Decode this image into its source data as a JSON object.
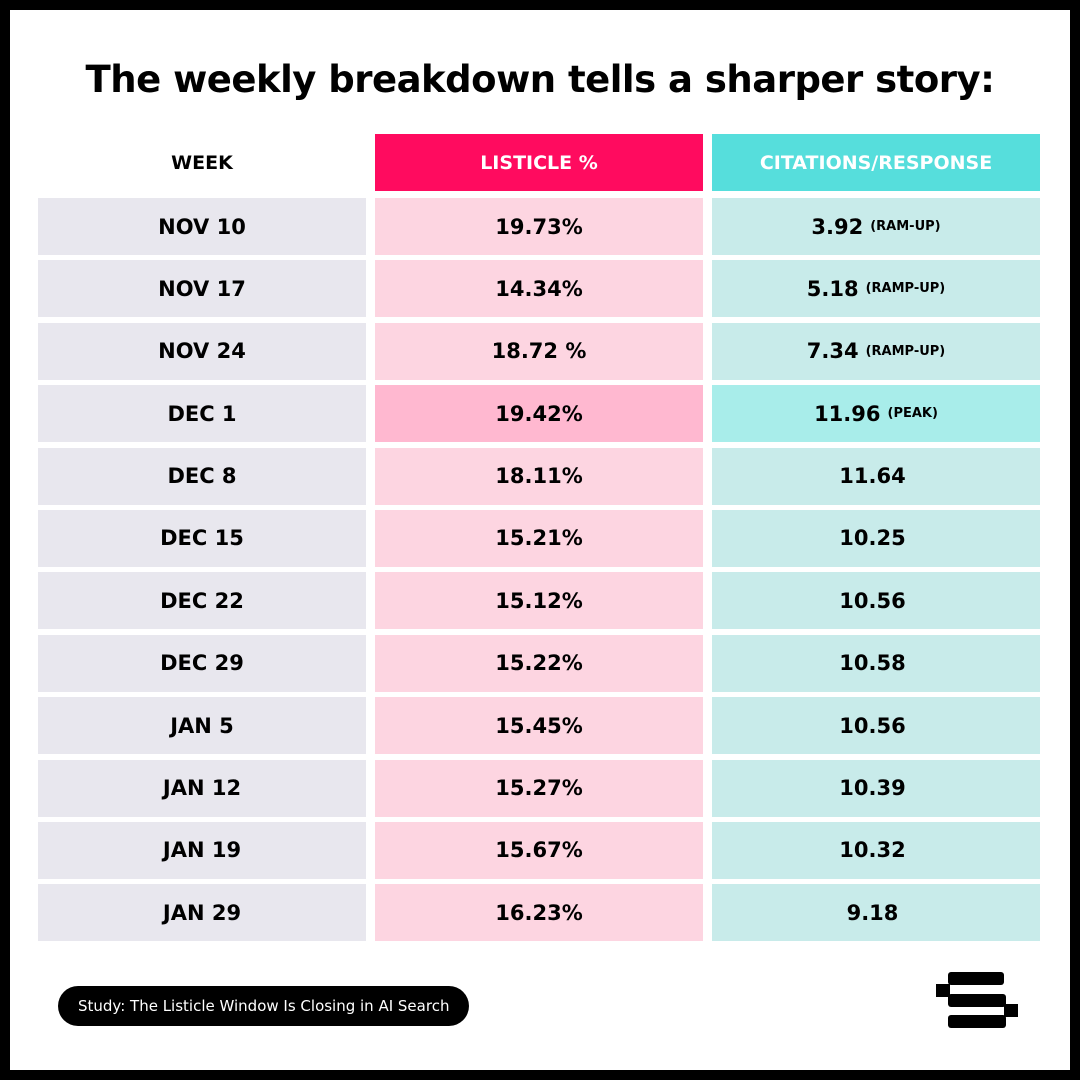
{
  "title": "The weekly breakdown tells a sharper story:",
  "table": {
    "headers": {
      "week": "WEEK",
      "listicle": "LISTICLE %",
      "citations": "CITATIONS/RESPONSE"
    },
    "rows": [
      {
        "week": "NOV 10",
        "listicle": "19.73%",
        "citations": "3.92",
        "note": "(RAM-UP)"
      },
      {
        "week": "NOV 17",
        "listicle": "14.34%",
        "citations": "5.18",
        "note": "(RAMP-UP)"
      },
      {
        "week": "NOV 24",
        "listicle": "18.72 %",
        "citations": "7.34",
        "note": "(RAMP-UP)"
      },
      {
        "week": "DEC 1",
        "listicle": "19.42%",
        "citations": "11.96",
        "note": "(PEAK)"
      },
      {
        "week": "DEC 8",
        "listicle": "18.11%",
        "citations": "11.64",
        "note": ""
      },
      {
        "week": "DEC 15",
        "listicle": "15.21%",
        "citations": "10.25",
        "note": ""
      },
      {
        "week": "DEC 22",
        "listicle": "15.12%",
        "citations": "10.56",
        "note": ""
      },
      {
        "week": "DEC 29",
        "listicle": "15.22%",
        "citations": "10.58",
        "note": ""
      },
      {
        "week": "JAN 5",
        "listicle": "15.45%",
        "citations": "10.56",
        "note": ""
      },
      {
        "week": "JAN 12",
        "listicle": "15.27%",
        "citations": "10.39",
        "note": ""
      },
      {
        "week": "JAN 19",
        "listicle": "15.67%",
        "citations": "10.32",
        "note": ""
      },
      {
        "week": "JAN 29",
        "listicle": "16.23%",
        "citations": "9.18",
        "note": ""
      }
    ]
  },
  "footer": {
    "badge": "Study: The Listicle Window Is Closing in AI Search",
    "logo_icon": "brand-s-logo-icon"
  },
  "colors": {
    "listicle_header": "#FF0B5F",
    "citations_header": "#56DEDC",
    "week_cell": "#E8E7EE",
    "listicle_cell": "#FDD5E1",
    "citations_cell": "#C8EBEA",
    "listicle_highlight": "#FFB8D0",
    "citations_highlight": "#A8EDEA"
  },
  "chart_data": {
    "type": "table",
    "title": "The weekly breakdown tells a sharper story:",
    "columns": [
      "WEEK",
      "LISTICLE %",
      "CITATIONS/RESPONSE"
    ],
    "categories": [
      "NOV 10",
      "NOV 17",
      "NOV 24",
      "DEC 1",
      "DEC 8",
      "DEC 15",
      "DEC 22",
      "DEC 29",
      "JAN 5",
      "JAN 12",
      "JAN 19",
      "JAN 29"
    ],
    "series": [
      {
        "name": "LISTICLE %",
        "values": [
          19.73,
          14.34,
          18.72,
          19.42,
          18.11,
          15.21,
          15.12,
          15.22,
          15.45,
          15.27,
          15.67,
          16.23
        ]
      },
      {
        "name": "CITATIONS/RESPONSE",
        "values": [
          3.92,
          5.18,
          7.34,
          11.96,
          11.64,
          10.25,
          10.56,
          10.58,
          10.56,
          10.39,
          10.32,
          9.18
        ]
      }
    ],
    "annotations": [
      {
        "row": "NOV 10",
        "text": "(RAM-UP)"
      },
      {
        "row": "NOV 17",
        "text": "(RAMP-UP)"
      },
      {
        "row": "NOV 24",
        "text": "(RAMP-UP)"
      },
      {
        "row": "DEC 1",
        "text": "(PEAK)",
        "highlighted": true
      }
    ]
  }
}
